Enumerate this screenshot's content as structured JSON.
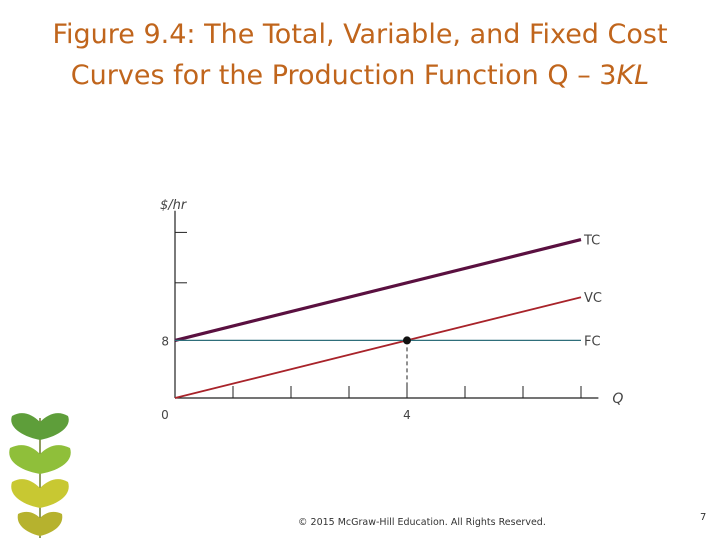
{
  "slide": {
    "title_line1": "Figure 9.4: The Total, Variable, and Fixed Cost",
    "title_line2_prefix": "Curves for the Production Function Q – 3",
    "title_line2_italic": "KL",
    "footer": "© 2015 McGraw-Hill Education. All Rights Reserved.",
    "page_number": "7"
  },
  "colors": {
    "title": "#c0651c",
    "tc": "#5a1040",
    "vc": "#a8232a",
    "fc": "#2e6e7a",
    "axis": "#222222"
  },
  "chart_data": {
    "type": "line",
    "ylabel": "$/hr",
    "xlabel": "Q",
    "xlim": [
      0,
      7.3
    ],
    "ylim": [
      0,
      26
    ],
    "x_tick_labels": [
      {
        "value": 0,
        "label": "0"
      },
      {
        "value": 4,
        "label": "4"
      }
    ],
    "y_tick_labels": [
      {
        "value": 8,
        "label": "8"
      }
    ],
    "unlabeled_x_ticks": [
      1,
      2,
      3,
      5,
      6,
      7
    ],
    "unlabeled_y_ticks": [
      16,
      23
    ],
    "series": [
      {
        "name": "TC",
        "x": [
          0,
          7
        ],
        "y": [
          8,
          22
        ]
      },
      {
        "name": "VC",
        "x": [
          0,
          7
        ],
        "y": [
          0,
          14
        ]
      },
      {
        "name": "FC",
        "x": [
          0,
          7
        ],
        "y": [
          8,
          8
        ]
      }
    ],
    "highlight_point": {
      "x": 4,
      "y": 8
    }
  }
}
